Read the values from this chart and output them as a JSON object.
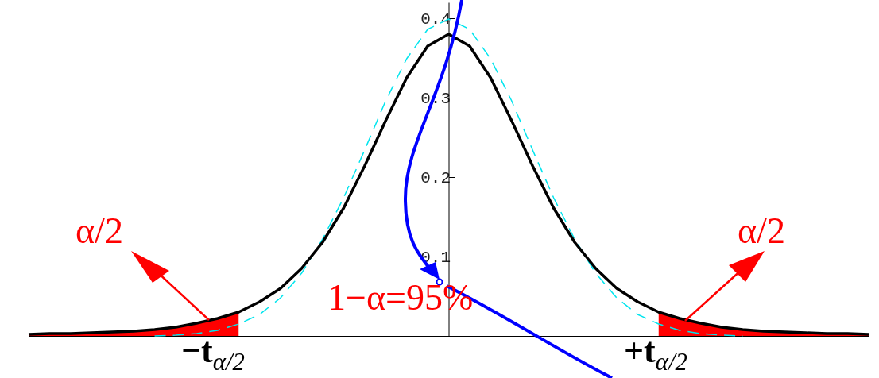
{
  "chart_data": {
    "type": "line",
    "categories": [
      null,
      null,
      null,
      null,
      null,
      null,
      null,
      null,
      null,
      null,
      null,
      null,
      null,
      null,
      null,
      null,
      null,
      null,
      null,
      null,
      null,
      null,
      null,
      null,
      null,
      null,
      null,
      null,
      null,
      null,
      null,
      null,
      null,
      null,
      null,
      null,
      null,
      null,
      null,
      null,
      null
    ],
    "ylim": [
      0,
      0.42
    ],
    "yticks": [
      0.1,
      0.2,
      0.3,
      0.4
    ],
    "tick_labels": "y",
    "series": [
      {
        "type": "area",
        "color": "#ff0000",
        "values": [
          0.002,
          0.003,
          0.003,
          0.004,
          0.005,
          0.006,
          0.008,
          0.011,
          0.016,
          0.022,
          0.03,
          null,
          null,
          null,
          null,
          null,
          null,
          null,
          null,
          null,
          null,
          null,
          null,
          null,
          null,
          null,
          null,
          null,
          null,
          null,
          null,
          null,
          null,
          null,
          null,
          null,
          null,
          null,
          null,
          null,
          null
        ]
      },
      {
        "type": "area",
        "color": "#ff0000",
        "values": [
          null,
          null,
          null,
          null,
          null,
          null,
          null,
          null,
          null,
          null,
          null,
          null,
          null,
          null,
          null,
          null,
          null,
          null,
          null,
          null,
          null,
          null,
          null,
          null,
          null,
          null,
          null,
          null,
          null,
          null,
          0.03,
          0.022,
          0.016,
          0.011,
          0.008,
          0.006,
          0.005,
          0.004,
          0.003,
          0.003,
          0.002
        ]
      },
      {
        "color": "#00e5ee",
        "line_style": "dashed",
        "values": [
          null,
          null,
          null,
          null,
          null,
          null,
          0.0,
          0.001,
          0.003,
          0.007,
          0.015,
          0.027,
          0.048,
          0.079,
          0.122,
          0.174,
          0.234,
          0.296,
          0.349,
          0.386,
          0.399,
          0.386,
          0.349,
          0.296,
          0.234,
          0.174,
          0.122,
          0.079,
          0.048,
          0.027,
          0.015,
          0.007,
          0.003,
          0.001,
          0.0,
          null,
          null,
          null,
          null,
          null,
          null
        ]
      },
      {
        "color": "#000000",
        "line_style": "solid",
        "values": [
          0.002,
          0.003,
          0.003,
          0.004,
          0.005,
          0.006,
          0.008,
          0.011,
          0.016,
          0.022,
          0.03,
          0.043,
          0.06,
          0.085,
          0.118,
          0.161,
          0.214,
          0.271,
          0.325,
          0.365,
          0.38,
          0.365,
          0.325,
          0.271,
          0.214,
          0.161,
          0.118,
          0.085,
          0.06,
          0.043,
          0.03,
          0.022,
          0.016,
          0.011,
          0.008,
          0.006,
          0.005,
          0.004,
          0.003,
          0.003,
          0.002
        ]
      }
    ],
    "annotations": [
      "α/2",
      "α/2",
      "1−α=95%",
      "−t$_{α/2}$",
      "+t$_{α/2}$"
    ]
  }
}
